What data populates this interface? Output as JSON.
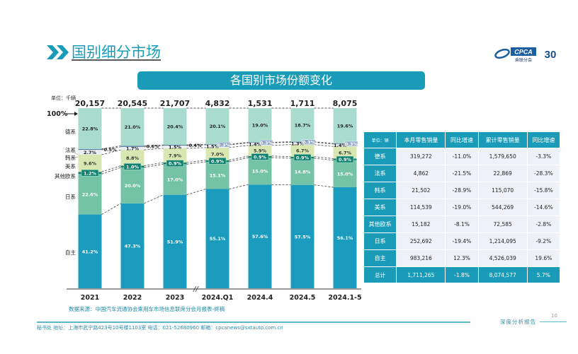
{
  "header": {
    "title": "国别细分市场",
    "logo_text": "CPCA",
    "logo_sub": "乘联分会",
    "logo_anniv": "30"
  },
  "banner": {
    "title": "各国别市场份额变化"
  },
  "chart_data": {
    "type": "bar",
    "stacked": true,
    "title": "各国别市场份额变化",
    "unit_label": "单位：千辆",
    "ylabel": "",
    "xlabel": "",
    "ylim": [
      0,
      100
    ],
    "top_marker": "100%",
    "categories": [
      "2021",
      "2022",
      "2023",
      "2024.Q1",
      "2024.4",
      "2024.5",
      "2024.1-5"
    ],
    "totals": [
      "20,157",
      "20,545",
      "21,707",
      "4,832",
      "1,531",
      "1,711",
      "8,075"
    ],
    "axis_break_after": "2023",
    "series": [
      {
        "name": "自主",
        "color": "#1b9bbd",
        "label_color": "#ffffff",
        "values": [
          41.2,
          47.3,
          51.9,
          55.1,
          57.6,
          57.5,
          56.1
        ],
        "labels": [
          "41.2%",
          "47.3%",
          "51.9%",
          "55.1%",
          "57.6%",
          "57.5%",
          "56.1%"
        ]
      },
      {
        "name": "日系",
        "color": "#74c3a6",
        "label_color": "#ffffff",
        "values": [
          22.6,
          20.0,
          17.0,
          15.1,
          15.0,
          14.8,
          15.0
        ],
        "labels": [
          "22.6%",
          "20.0%",
          "17.0%",
          "15.1%",
          "15.0%",
          "14.8%",
          "15.0%"
        ]
      },
      {
        "name": "其他欧系",
        "color": "#13806e",
        "label_color": "#ffffff",
        "boxed": true,
        "values": [
          1.2,
          1.0,
          0.9,
          0.9,
          0.9,
          0.9,
          0.9
        ],
        "labels": [
          "1.2%",
          "1.0%",
          "0.9%",
          "0.9%",
          "0.9%",
          "0.9%",
          "0.9%"
        ]
      },
      {
        "name": "美系",
        "color": "#d9e8b2",
        "label_color": "#333333",
        "values": [
          9.6,
          8.8,
          7.9,
          7.0,
          5.9,
          6.7,
          6.7
        ],
        "labels": [
          "9.6%",
          "8.8%",
          "7.9%",
          "7.0%",
          "5.9%",
          "6.7%",
          "6.7%"
        ]
      },
      {
        "name": "韩系",
        "color": "#e8eef3",
        "label_color": "#222222",
        "values": [
          2.7,
          1.7,
          1.5,
          1.5,
          1.4,
          1.3,
          1.4
        ],
        "labels": [
          "2.7%",
          "1.7%",
          "1.5%",
          "1.5%",
          "1.4%",
          "1.3%",
          "1.4%"
        ]
      },
      {
        "name": "法系",
        "color": "#5d7aa3",
        "label_color": "#222222",
        "values": [
          0.5,
          0.6,
          0.4,
          0.3,
          0.3,
          0.3,
          0.3
        ],
        "labels": [
          "0.5%",
          "0.6%",
          "0.4%",
          "0.3%",
          "0.3%",
          "0.3%",
          "0.3%"
        ]
      },
      {
        "name": "德系",
        "color": "#a9dccf",
        "label_color": "#222222",
        "values": [
          22.8,
          21.0,
          20.4,
          20.1,
          19.0,
          18.7,
          19.6
        ],
        "labels": [
          "22.8%",
          "21.0%",
          "20.4%",
          "20.1%",
          "19.0%",
          "18.7%",
          "19.6%"
        ]
      }
    ],
    "legend_labels": [
      "德系",
      "法系",
      "韩系",
      "美系",
      "其他欧系",
      "日系",
      "自主"
    ]
  },
  "table": {
    "headers": [
      "单位：辆",
      "本月零售销量",
      "同比增速",
      "累计零售销量",
      "同比增速"
    ],
    "rows": [
      [
        "德系",
        "319,272",
        "-11.0%",
        "1,579,650",
        "-3.3%"
      ],
      [
        "法系",
        "4,862",
        "-21.5%",
        "22,869",
        "-28.3%"
      ],
      [
        "韩系",
        "21,502",
        "-28.9%",
        "115,070",
        "-15.8%"
      ],
      [
        "美系",
        "114,539",
        "-19.0%",
        "544,269",
        "-14.6%"
      ],
      [
        "其他欧系",
        "15,182",
        "-8.1%",
        "72,585",
        "-2.8%"
      ],
      [
        "日系",
        "252,692",
        "-19.4%",
        "1,214,095",
        "-9.2%"
      ],
      [
        "自主",
        "983,216",
        "12.3%",
        "4,526,039",
        "19.6%"
      ]
    ],
    "total": [
      "总计",
      "1,711,265",
      "-1.8%",
      "8,074,577",
      "5.7%"
    ]
  },
  "source": "数据来源：中国汽车流通协会乘用车市场信息联席分会月报表-终稿",
  "footer": {
    "address": "秘书处  地址：上海市武宁路423号10号楼1103室   电话：021-52680960   邮箱：cpcanews@sxtauto.com.cn",
    "report_label": "深度分析报告",
    "page_number": "10"
  }
}
